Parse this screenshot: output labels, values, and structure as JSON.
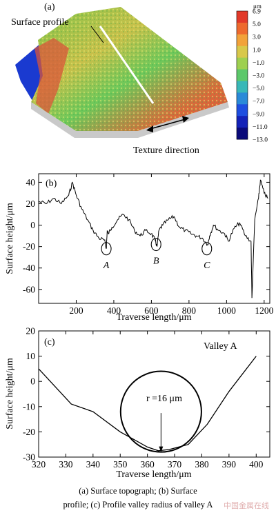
{
  "panel_a": {
    "label": "(a)",
    "surface_profile_label": "Surface profile",
    "texture_direction_label": "Texture direction",
    "colorbar": {
      "unit": "μm",
      "ticks": [
        "6.9",
        "5.0",
        "3.0",
        "1.0",
        "−1.0",
        "−3.0",
        "−5.0",
        "−7.0",
        "−9.0",
        "−11.0",
        "−13.0"
      ],
      "colors": [
        "#e23a2a",
        "#ee6a2e",
        "#f2a23a",
        "#d8c84a",
        "#9ed050",
        "#5cc86a",
        "#38b8b8",
        "#2a8ad8",
        "#1e4ee0",
        "#1422b8",
        "#0a0a7a"
      ]
    }
  },
  "panel_b": {
    "label": "(b)",
    "valley_labels": [
      "A",
      "B",
      "C"
    ],
    "chart_data": {
      "type": "line",
      "xlabel": "Traverse length/μm",
      "ylabel": "Surface height/μm",
      "xlim": [
        0,
        1230
      ],
      "ylim": [
        -73,
        48
      ],
      "xticks": [
        200,
        400,
        600,
        800,
        1000,
        1200
      ],
      "yticks": [
        -60,
        -40,
        -20,
        0,
        20,
        40
      ],
      "x": [
        0,
        40,
        80,
        120,
        160,
        180,
        200,
        230,
        260,
        290,
        320,
        350,
        360,
        365,
        370,
        390,
        420,
        450,
        480,
        510,
        540,
        570,
        600,
        620,
        630,
        640,
        660,
        690,
        720,
        750,
        780,
        810,
        840,
        870,
        900,
        910,
        930,
        960,
        990,
        1010,
        1040,
        1070,
        1100,
        1130,
        1135,
        1150,
        1170,
        1180,
        1200,
        1220
      ],
      "y": [
        22,
        20,
        25,
        20,
        28,
        40,
        28,
        15,
        5,
        -5,
        -12,
        -14,
        -22,
        -5,
        -8,
        -2,
        5,
        10,
        5,
        -5,
        -10,
        -5,
        -8,
        -14,
        -20,
        -5,
        0,
        5,
        8,
        -2,
        -5,
        -8,
        -10,
        -12,
        -18,
        -10,
        0,
        -5,
        -8,
        -15,
        -3,
        2,
        -10,
        -15,
        -68,
        5,
        25,
        42,
        30,
        25
      ],
      "valleys": [
        {
          "name": "A",
          "x": 360,
          "y": -22
        },
        {
          "name": "B",
          "x": 625,
          "y": -18
        },
        {
          "name": "C",
          "x": 895,
          "y": -22
        }
      ]
    }
  },
  "panel_c": {
    "label": "(c)",
    "valley_label": "Valley A",
    "radius_label": "r =16 μm",
    "chart_data": {
      "type": "line",
      "xlabel": "Traverse length/μm",
      "ylabel": "Surface height/μm",
      "xlim": [
        320,
        405
      ],
      "ylim": [
        -30,
        20
      ],
      "xticks": [
        320,
        330,
        340,
        350,
        360,
        370,
        380,
        390,
        400
      ],
      "yticks": [
        -30,
        -20,
        -10,
        0,
        10,
        20
      ],
      "x": [
        320,
        332,
        340,
        350,
        360,
        364,
        368,
        375,
        382,
        390,
        400
      ],
      "y": [
        5,
        -9,
        -12,
        -20,
        -26,
        -27.5,
        -27,
        -25,
        -17,
        -4,
        10
      ],
      "circle": {
        "cx": 365,
        "cy": -12,
        "r": 16
      }
    }
  },
  "caption": {
    "line1": "(a) Surface topograph; (b) Surface",
    "line2": "profile; (c) Profile valley radius of valley A"
  },
  "watermark": "中国金属在线"
}
